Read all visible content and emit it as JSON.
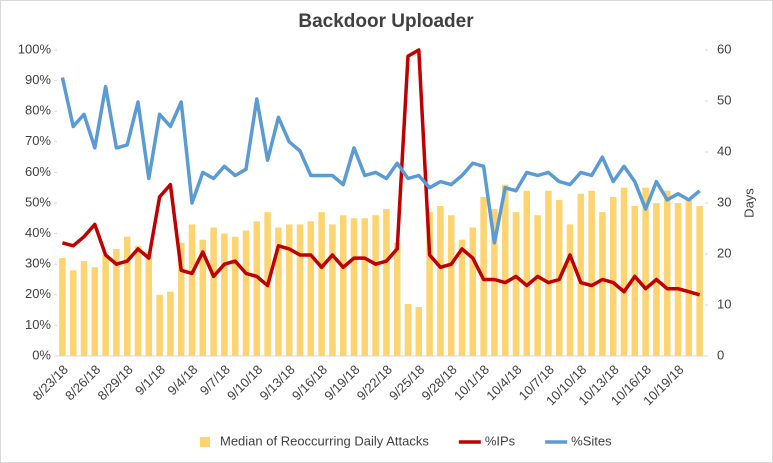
{
  "chart_data": {
    "type": "bar-line",
    "title": "Backdoor Uploader",
    "y2_label": "Days",
    "categories": [
      "8/23/18",
      null,
      null,
      "8/26/18",
      null,
      null,
      "8/29/18",
      null,
      null,
      "9/1/18",
      null,
      null,
      "9/4/18",
      null,
      null,
      "9/7/18",
      null,
      null,
      "9/10/18",
      null,
      null,
      "9/13/18",
      null,
      null,
      "9/16/18",
      null,
      null,
      "9/19/18",
      null,
      null,
      "9/22/18",
      null,
      null,
      "9/25/18",
      null,
      null,
      "9/28/18",
      null,
      null,
      "10/1/18",
      null,
      null,
      "10/4/18",
      null,
      null,
      "10/7/18",
      null,
      null,
      "10/10/18",
      null,
      null,
      "10/13/18",
      null,
      null,
      "10/16/18",
      null,
      null,
      "10/19/18",
      null,
      null
    ],
    "series": [
      {
        "name": "Median of Reoccurring Daily Attacks",
        "type": "bar",
        "axis": "y2",
        "color": "#fdd46f",
        "values": [
          19.2,
          16.8,
          18.6,
          17.4,
          19.8,
          21,
          23.4,
          21.6,
          20.4,
          12,
          12.6,
          22.2,
          25.8,
          22.8,
          25.2,
          24,
          23.4,
          24.6,
          26.4,
          28.2,
          25.2,
          25.8,
          25.8,
          26.4,
          28.2,
          25.8,
          27.6,
          27,
          27,
          27.6,
          28.8,
          22.2,
          10.2,
          9.6,
          28.2,
          29.4,
          27.6,
          22.8,
          25.2,
          31.2,
          28.8,
          33.6,
          28.2,
          32.4,
          27.6,
          32.4,
          30.6,
          25.8,
          31.8,
          32.4,
          28.2,
          31.2,
          33,
          29.4,
          33,
          30,
          32.4,
          30,
          30.6,
          29.4
        ]
      },
      {
        "name": "%IPs",
        "type": "line",
        "color": "#c00000",
        "values": [
          37,
          36,
          39,
          43,
          33,
          30,
          31,
          35,
          32,
          52,
          56,
          28,
          27,
          34,
          26,
          30,
          31,
          27,
          26,
          23,
          36,
          35,
          33,
          33,
          29,
          33,
          29,
          32,
          32,
          30,
          31,
          35,
          98,
          100,
          33,
          29,
          30,
          35,
          32,
          25,
          25,
          24,
          26,
          23,
          26,
          24,
          25,
          33,
          24,
          23,
          25,
          24,
          21,
          26,
          22,
          25,
          22,
          22,
          21,
          20
        ]
      },
      {
        "name": "%Sites",
        "type": "line",
        "color": "#5b9bd5",
        "values": [
          91,
          75,
          79,
          68,
          88,
          68,
          69,
          83,
          58,
          79,
          75,
          83,
          50,
          60,
          58,
          62,
          59,
          61,
          84,
          64,
          78,
          70,
          67,
          59,
          59,
          59,
          56,
          68,
          59,
          60,
          58,
          63,
          58,
          59,
          55,
          57,
          56,
          59,
          63,
          62,
          37,
          55,
          54,
          60,
          59,
          60,
          57,
          56,
          60,
          59,
          65,
          57,
          62,
          57,
          48,
          57,
          51,
          53,
          51,
          54
        ]
      }
    ],
    "ylim": [
      0,
      100
    ],
    "yticks": [
      {
        "value": 0,
        "label": "0%"
      },
      {
        "value": 10,
        "label": "10%"
      },
      {
        "value": 20,
        "label": "20%"
      },
      {
        "value": 30,
        "label": "30%"
      },
      {
        "value": 40,
        "label": "40%"
      },
      {
        "value": 50,
        "label": "50%"
      },
      {
        "value": 60,
        "label": "60%"
      },
      {
        "value": 70,
        "label": "70%"
      },
      {
        "value": 80,
        "label": "80%"
      },
      {
        "value": 90,
        "label": "90%"
      },
      {
        "value": 100,
        "label": "100%"
      }
    ],
    "y2lim": [
      0,
      60
    ],
    "y2ticks": [
      0,
      10,
      20,
      30,
      40,
      50,
      60
    ],
    "legend": "bottom"
  }
}
